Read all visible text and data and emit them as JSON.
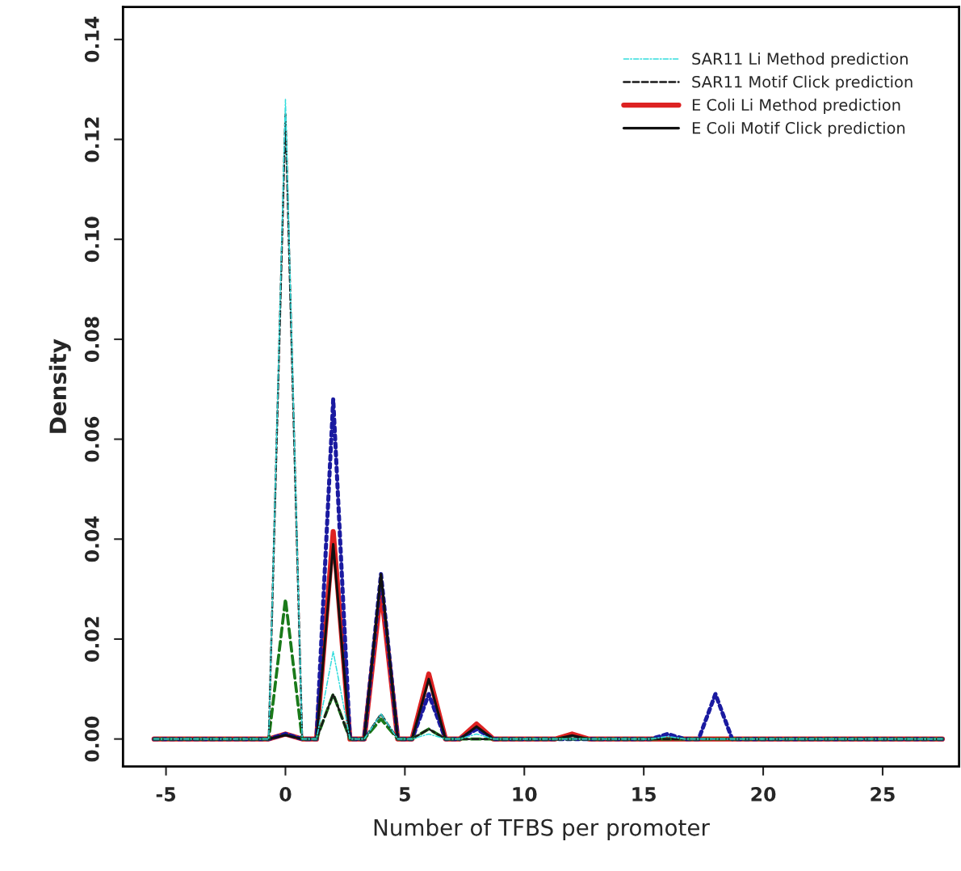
{
  "chart_data": {
    "type": "line",
    "xlabel": "Number of TFBS per promoter",
    "ylabel": "Density",
    "x": [
      -5.5,
      -0.7,
      0,
      0.7,
      1.3,
      2,
      2.7,
      3.3,
      4,
      4.7,
      5.3,
      6,
      6.7,
      7.3,
      8,
      8.7,
      11.3,
      12,
      12.7,
      15.3,
      16,
      16.7,
      17.3,
      18,
      18.7,
      27.5
    ],
    "series": [
      {
        "name": "SAR11 Li Method prediction",
        "color": "#33dddd",
        "line_style": "dashdot",
        "values": [
          0,
          0,
          0.128,
          0,
          0,
          0.0175,
          0,
          0,
          0.005,
          0,
          0,
          0.001,
          0,
          0,
          0.001,
          0,
          0,
          0,
          0,
          0,
          0.0005,
          0,
          0,
          0,
          0,
          0
        ]
      },
      {
        "color": "#1a7a1a",
        "line_style": "dashed",
        "values": [
          0,
          0,
          0.028,
          0,
          0,
          0.009,
          0,
          0,
          0.004,
          0,
          0,
          0.002,
          0,
          0,
          0,
          0,
          0,
          0,
          0,
          0,
          0,
          0,
          0,
          0,
          0,
          0
        ]
      },
      {
        "color": "#1a1aa0",
        "line_style": "dotted",
        "values": [
          0,
          0,
          0.001,
          0,
          0,
          0.068,
          0,
          0,
          0.033,
          0,
          0,
          0.009,
          0,
          0,
          0.002,
          0,
          0,
          0,
          0,
          0,
          0.001,
          0,
          0,
          0.009,
          0,
          0
        ]
      },
      {
        "name": "SAR11 Motif Click prediction",
        "color": "#1a1a1a",
        "line_style": "dashed",
        "values": [
          0,
          0,
          0.125,
          0,
          0,
          0.009,
          0,
          0,
          0.005,
          0,
          0,
          0.002,
          0,
          0,
          0,
          0,
          0,
          0,
          0,
          0,
          0,
          0,
          0,
          0,
          0,
          0
        ]
      },
      {
        "name": "E Coli Li Method prediction",
        "color": "#dd2222",
        "line_style": "solid",
        "values": [
          0,
          0,
          0.001,
          0,
          0,
          0.0415,
          0,
          0,
          0.03,
          0,
          0,
          0.013,
          0,
          0,
          0.003,
          0,
          0,
          0.001,
          0,
          0,
          0,
          0,
          0,
          0,
          0,
          0
        ]
      },
      {
        "name": "E Coli Motif Click prediction",
        "color": "#111111",
        "line_style": "solid",
        "values": [
          0,
          0,
          0.0008,
          0,
          0,
          0.039,
          0,
          0,
          0.033,
          0,
          0,
          0.012,
          0,
          0,
          0.0025,
          0,
          0,
          0.0007,
          0,
          0,
          0,
          0,
          0,
          0,
          0,
          0
        ]
      }
    ],
    "xlim": [
      -6.8,
      28.2
    ],
    "ylim": [
      -0.0055,
      0.1465
    ],
    "xticks": [
      -5,
      0,
      5,
      10,
      15,
      20,
      25
    ],
    "yticks": [
      {
        "value": 0,
        "label": "0.00"
      },
      {
        "value": 0.02,
        "label": "0.02"
      },
      {
        "value": 0.04,
        "label": "0.04"
      },
      {
        "value": 0.06,
        "label": "0.06"
      },
      {
        "value": 0.08,
        "label": "0.08"
      },
      {
        "value": 0.1,
        "label": "0.10"
      },
      {
        "value": 0.12,
        "label": "0.12"
      },
      {
        "value": 0.14,
        "label": "0.14"
      }
    ],
    "grid": false,
    "legend": "top right"
  }
}
